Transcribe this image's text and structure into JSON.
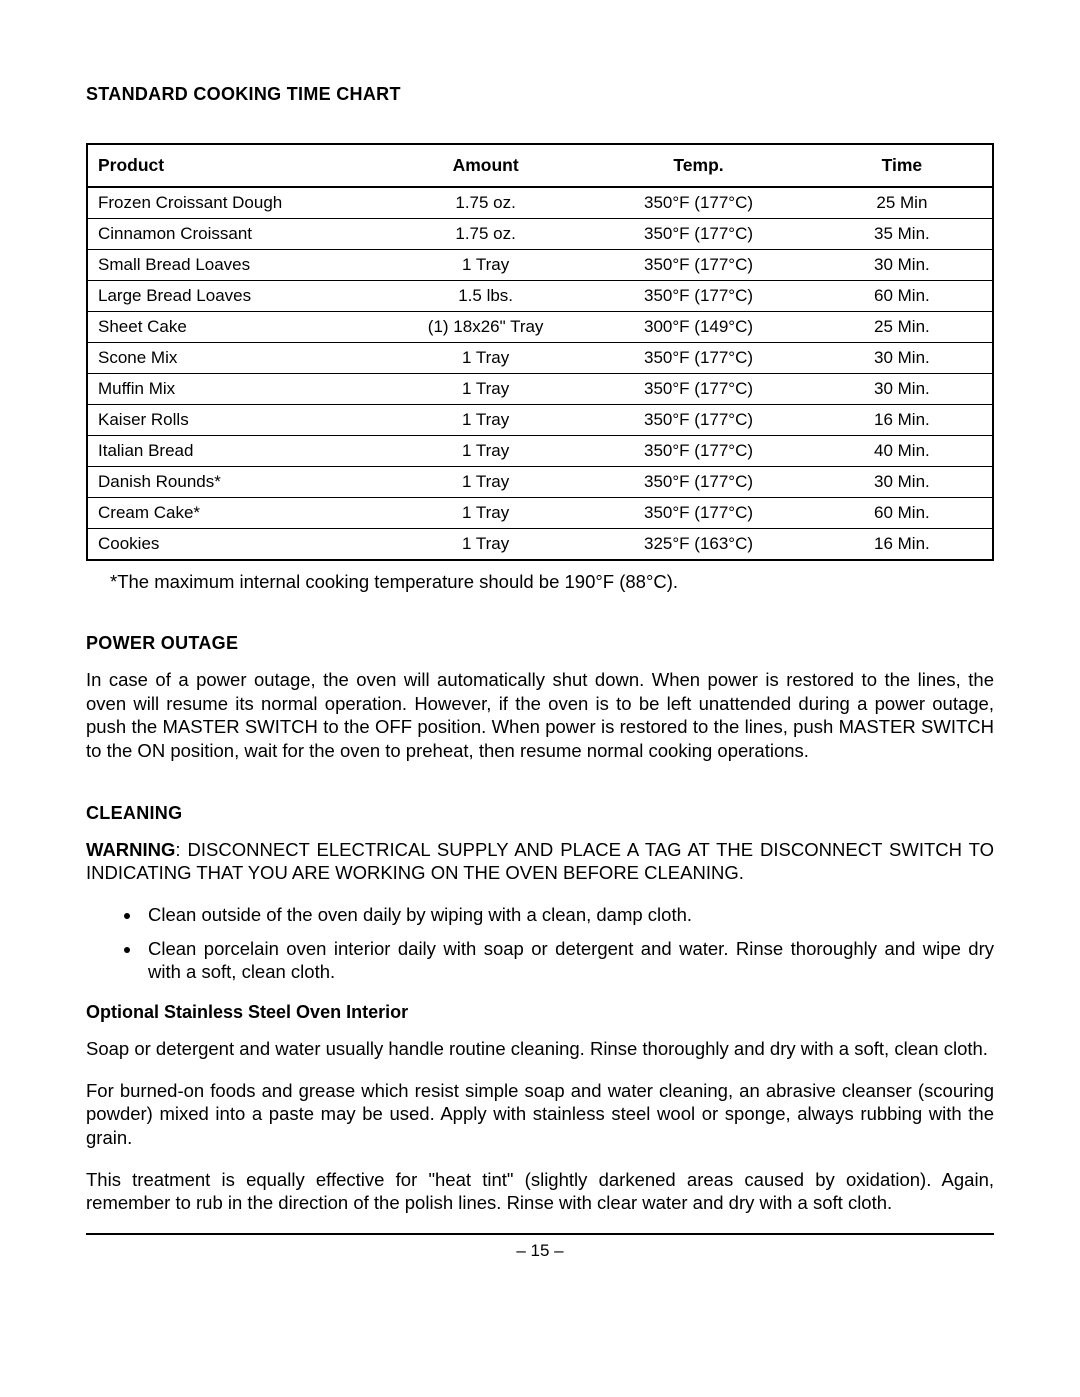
{
  "heading": "STANDARD COOKING TIME CHART",
  "table": {
    "type": "table",
    "columns": [
      "Product",
      "Amount",
      "Temp.",
      "Time"
    ],
    "rows": [
      [
        "Frozen Croissant Dough",
        "1.75 oz.",
        "350°F (177°C)",
        "25 Min"
      ],
      [
        "Cinnamon Croissant",
        "1.75 oz.",
        "350°F (177°C)",
        "35 Min."
      ],
      [
        "Small Bread Loaves",
        "1 Tray",
        "350°F (177°C)",
        "30 Min."
      ],
      [
        "Large Bread Loaves",
        "1.5 lbs.",
        "350°F (177°C)",
        "60 Min."
      ],
      [
        "Sheet Cake",
        "(1) 18x26\" Tray",
        "300°F (149°C)",
        "25 Min."
      ],
      [
        "Scone Mix",
        "1 Tray",
        "350°F (177°C)",
        "30 Min."
      ],
      [
        "Muffin Mix",
        "1 Tray",
        "350°F (177°C)",
        "30 Min."
      ],
      [
        "Kaiser Rolls",
        "1 Tray",
        "350°F (177°C)",
        "16 Min."
      ],
      [
        "Italian Bread",
        "1 Tray",
        "350°F (177°C)",
        "40 Min."
      ],
      [
        "Danish Rounds*",
        "1 Tray",
        "350°F (177°C)",
        "30 Min."
      ],
      [
        "Cream Cake*",
        "1 Tray",
        "350°F (177°C)",
        "60 Min."
      ],
      [
        "Cookies",
        "1 Tray",
        "325°F (163°C)",
        "16 Min."
      ]
    ],
    "border_color": "#000000",
    "header_fontsize": 17.5,
    "cell_fontsize": 17
  },
  "footnote": "*The maximum internal cooking temperature should be 190°F (88°C).",
  "power_outage": {
    "heading": "POWER OUTAGE",
    "body": "In case of a power outage, the oven will automatically shut down. When power is restored to the lines, the oven will resume its normal operation. However, if the oven is to be left unattended during a power outage, push the MASTER SWITCH to the OFF position. When power is restored to the lines, push MASTER SWITCH to the ON position, wait for the oven to preheat, then resume normal cooking operations."
  },
  "cleaning": {
    "heading": "CLEANING",
    "warning_label": "WARNING",
    "warning_body": ": DISCONNECT ELECTRICAL SUPPLY AND PLACE A TAG AT THE DISCONNECT SWITCH TO INDICATING THAT YOU ARE WORKING ON THE OVEN BEFORE CLEANING.",
    "bullets": [
      "Clean outside of the oven daily by wiping with a clean, damp cloth.",
      "Clean porcelain oven interior daily with soap or detergent and water. Rinse thoroughly and wipe dry with a soft, clean cloth."
    ],
    "optional": {
      "heading": "Optional Stainless Steel Oven Interior",
      "p1": "Soap or detergent and water usually handle routine cleaning. Rinse thoroughly and dry with a soft, clean cloth.",
      "p2": "For burned-on foods and grease which resist simple soap and water cleaning, an abrasive cleanser (scouring powder) mixed into a paste may be used. Apply with stainless steel wool or sponge, always rubbing with the grain.",
      "p3": "This treatment is equally effective for \"heat tint\" (slightly darkened areas caused by oxidation). Again, remember to rub in the direction of the polish lines. Rinse with clear water and dry with a soft cloth."
    }
  },
  "page_number": "– 15 –",
  "colors": {
    "background": "#ffffff",
    "text": "#000000"
  }
}
